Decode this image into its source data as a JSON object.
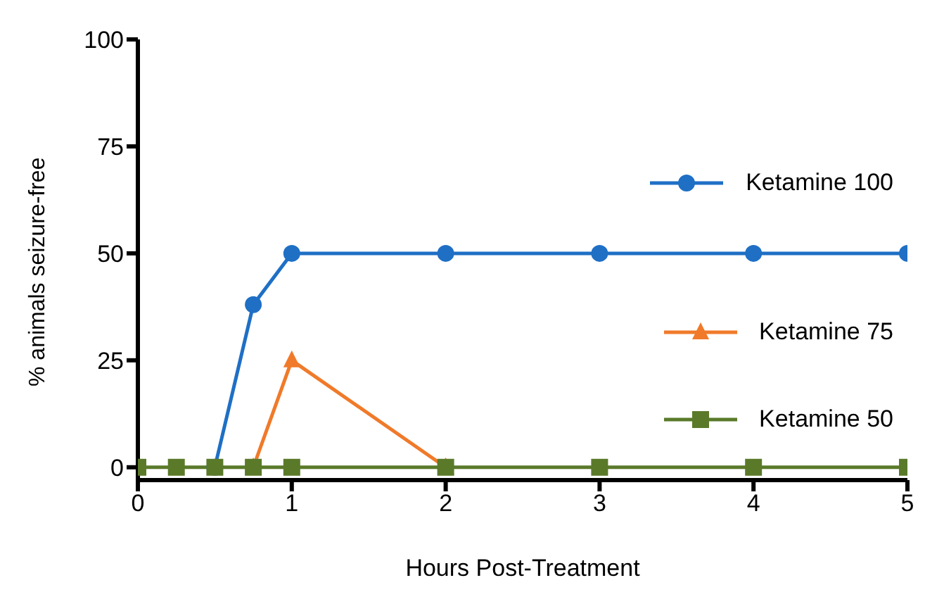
{
  "chart_data": {
    "type": "line",
    "xlabel": "Hours Post-Treatment",
    "ylabel": "% animals seizure-free",
    "x": [
      0,
      0.25,
      0.5,
      0.75,
      1,
      2,
      3,
      4,
      5
    ],
    "xlim": [
      0,
      5
    ],
    "xticks": [
      0,
      1,
      2,
      3,
      4,
      5
    ],
    "ylim": [
      -3,
      100
    ],
    "yticks": [
      0,
      25,
      50,
      75,
      100
    ],
    "grid": false,
    "legend": "right",
    "series": [
      {
        "name": "Ketamine 100",
        "color": "#1f6fc5",
        "marker": "circle",
        "values": [
          null,
          null,
          0,
          38,
          50,
          50,
          50,
          50,
          50
        ]
      },
      {
        "name": "Ketamine 75",
        "color": "#f07a2a",
        "marker": "triangle",
        "values": [
          null,
          null,
          null,
          0,
          25,
          0,
          null,
          null,
          null
        ]
      },
      {
        "name": "Ketamine 50",
        "color": "#5a7a2a",
        "marker": "square",
        "values": [
          0,
          0,
          0,
          0,
          0,
          0,
          0,
          0,
          0
        ]
      }
    ]
  }
}
